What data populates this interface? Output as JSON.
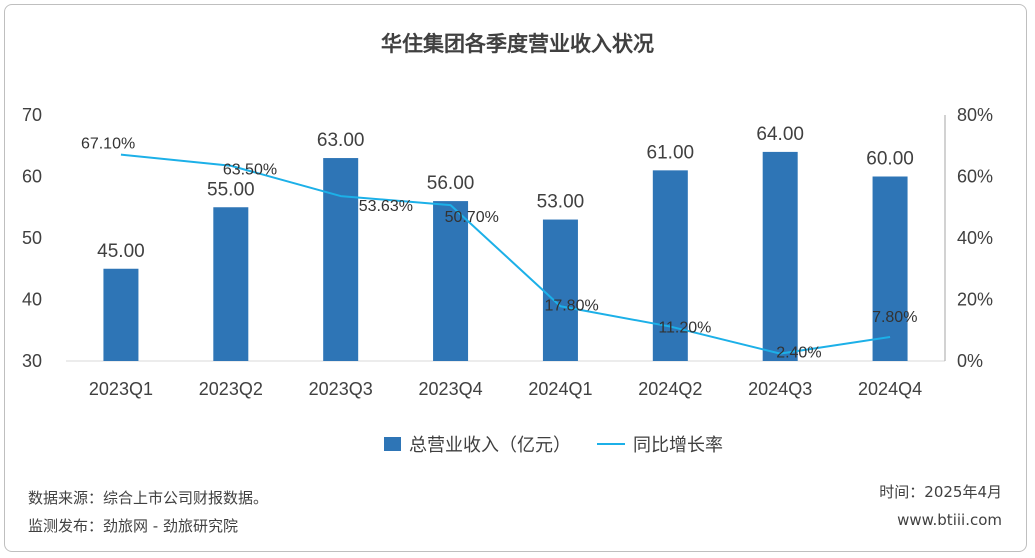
{
  "chart_data": {
    "type": "bar+line",
    "title": "华住集团各季度营业收入状况",
    "categories": [
      "2023Q1",
      "2023Q2",
      "2023Q3",
      "2023Q4",
      "2024Q1",
      "2024Q2",
      "2024Q3",
      "2024Q4"
    ],
    "series": [
      {
        "name": "总营业收入（亿元）",
        "type": "bar",
        "axis": "left",
        "color": "#2e75b6",
        "values": [
          45.0,
          55.0,
          63.0,
          56.0,
          53.0,
          61.0,
          64.0,
          60.0
        ],
        "labels": [
          "45.00",
          "55.00",
          "63.00",
          "56.00",
          "53.00",
          "61.00",
          "64.00",
          "60.00"
        ]
      },
      {
        "name": "同比增长率",
        "type": "line",
        "axis": "right",
        "color": "#1cb0e8",
        "values": [
          67.1,
          63.5,
          53.63,
          50.7,
          17.8,
          11.2,
          2.4,
          7.8
        ],
        "labels": [
          "67.10%",
          "63.50%",
          "53.63%",
          "50.70%",
          "17.80%",
          "11.20%",
          "2.40%",
          "7.80%"
        ]
      }
    ],
    "y_left": {
      "min": 30,
      "max": 70,
      "ticks": [
        "30",
        "40",
        "50",
        "60",
        "70"
      ]
    },
    "y_right": {
      "min": 0,
      "max": 80,
      "ticks": [
        "0%",
        "20%",
        "40%",
        "60%",
        "80%"
      ]
    },
    "legend_position": "bottom"
  },
  "footer": {
    "source": "数据来源：综合上市公司财报数据。",
    "monitor": "监测发布：劲旅网 - 劲旅研究院",
    "time": "时间：2025年4月",
    "site": "www.btiii.com"
  }
}
